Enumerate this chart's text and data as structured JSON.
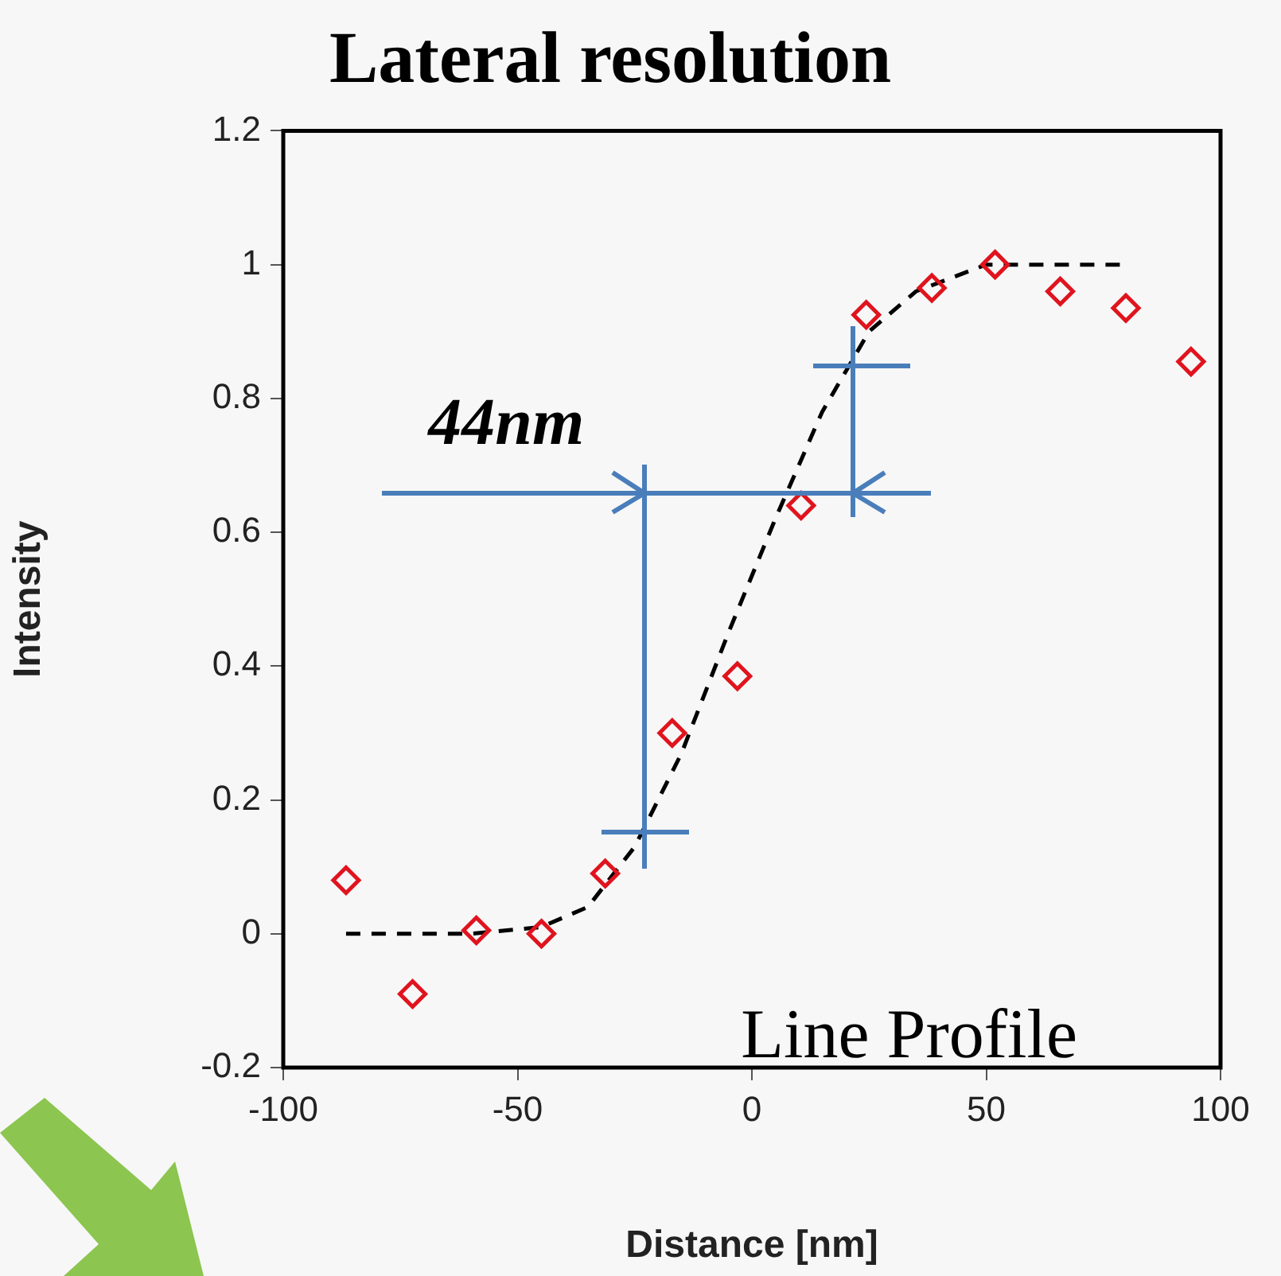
{
  "chart_data": {
    "type": "scatter",
    "title": "Lateral resolution",
    "xlabel": "Distance [nm]",
    "ylabel": "Intensity",
    "xlim": [
      -100,
      100
    ],
    "xticks": [
      -100,
      -50,
      0,
      50,
      100
    ],
    "ylim": [
      -0.2,
      1.2
    ],
    "yticks": [
      -0.2,
      0,
      0.2,
      0.4,
      0.6,
      0.8,
      1,
      1.2
    ],
    "grid": false,
    "legend": false,
    "marker": "diamond",
    "annotations": [
      "44nm",
      "Line Profile"
    ],
    "series": [
      {
        "color": "#e0141e",
        "x": [
          -86.6,
          -72.4,
          -58.8,
          -44.9,
          -31.3,
          -17.0,
          -3.1,
          10.5,
          24.4,
          38.4,
          51.9,
          65.8,
          79.8,
          93.7
        ],
        "values": [
          0.08,
          -0.09,
          0.005,
          0.0,
          0.09,
          0.3,
          0.385,
          0.64,
          0.925,
          0.965,
          1.0,
          0.96,
          0.935,
          0.855
        ]
      },
      {
        "type": "line",
        "color": "#000000",
        "marker": "none",
        "line_style": "dashed",
        "x": [
          -86.6,
          -60,
          -45,
          -35,
          -25,
          -15,
          -5,
          5,
          15,
          25,
          35,
          50,
          65,
          79.8
        ],
        "values": [
          0,
          0,
          0.01,
          0.04,
          0.13,
          0.27,
          0.45,
          0.62,
          0.78,
          0.9,
          0.96,
          1.0,
          1.0,
          1.0
        ]
      }
    ]
  }
}
